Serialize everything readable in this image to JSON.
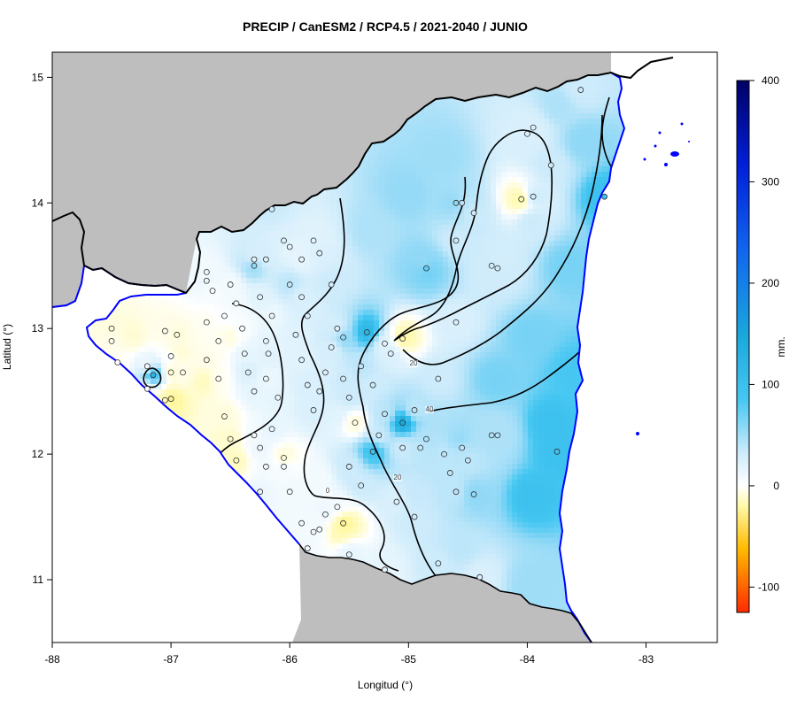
{
  "title": "PRECIP / CanESM2 / RCP4.5 / 2021-2040 / JUNIO",
  "x_axis": {
    "label": "Longitud (°)",
    "range": [
      -88,
      -82.4
    ],
    "ticks": [
      "-88",
      "-87",
      "-86",
      "-85",
      "-84",
      "-83"
    ]
  },
  "y_axis": {
    "label": "Latitud (°)",
    "range": [
      10.5,
      15.2
    ],
    "ticks": [
      "11",
      "12",
      "13",
      "14",
      "15"
    ]
  },
  "colorbar": {
    "label": "mm.",
    "range": [
      -125,
      400
    ],
    "ticks": [
      "-100",
      "0",
      "100",
      "200",
      "300",
      "400"
    ],
    "colors": {
      "very_negative": "#ff2a00",
      "negative": "#ffcc00",
      "low_negative": "#fffbb0",
      "zero": "#ffffff",
      "low_positive": "#bfe6fb",
      "mid_positive": "#1fc0f2",
      "high_positive": "#0026e0",
      "max": "#000070"
    }
  },
  "contours": {
    "levels": [
      "0",
      "20",
      "40"
    ],
    "label_0": "0",
    "label_20a": "20",
    "label_20b": "20",
    "label_40": "40"
  },
  "colors": {
    "land_outside": "#bebebe",
    "sea": "#ffffff",
    "border": "#000000",
    "coast": "#0000ff"
  },
  "stations": [
    {
      "lon": -87.5,
      "lat": 13.0,
      "v": -8
    },
    {
      "lon": -87.5,
      "lat": 12.9,
      "v": -5
    },
    {
      "lon": -87.45,
      "lat": 12.73,
      "v": -2
    },
    {
      "lon": -87.2,
      "lat": 12.7,
      "v": 5
    },
    {
      "lon": -87.15,
      "lat": 12.63,
      "v": 70
    },
    {
      "lon": -87.2,
      "lat": 12.52,
      "v": 2
    },
    {
      "lon": -87.05,
      "lat": 12.98,
      "v": -5
    },
    {
      "lon": -86.95,
      "lat": 12.95,
      "v": -8
    },
    {
      "lon": -87.0,
      "lat": 12.78,
      "v": 2
    },
    {
      "lon": -87.0,
      "lat": 12.65,
      "v": -10
    },
    {
      "lon": -87.05,
      "lat": 12.43,
      "v": -15
    },
    {
      "lon": -87.0,
      "lat": 12.44,
      "v": -25
    },
    {
      "lon": -86.9,
      "lat": 12.65,
      "v": -5
    },
    {
      "lon": -86.7,
      "lat": 12.75,
      "v": -5
    },
    {
      "lon": -86.6,
      "lat": 12.6,
      "v": -3
    },
    {
      "lon": -86.55,
      "lat": 12.3,
      "v": -8
    },
    {
      "lon": -86.5,
      "lat": 12.12,
      "v": -12
    },
    {
      "lon": -86.45,
      "lat": 11.95,
      "v": -15
    },
    {
      "lon": -86.7,
      "lat": 13.05,
      "v": -3
    },
    {
      "lon": -86.6,
      "lat": 12.9,
      "v": -3
    },
    {
      "lon": -86.55,
      "lat": 13.1,
      "v": 2
    },
    {
      "lon": -86.65,
      "lat": 13.3,
      "v": 3
    },
    {
      "lon": -86.7,
      "lat": 13.45,
      "v": 5
    },
    {
      "lon": -86.7,
      "lat": 13.38,
      "v": 8
    },
    {
      "lon": -86.5,
      "lat": 13.35,
      "v": 5
    },
    {
      "lon": -86.45,
      "lat": 13.2,
      "v": 5
    },
    {
      "lon": -86.4,
      "lat": 13.0,
      "v": 3
    },
    {
      "lon": -86.38,
      "lat": 12.8,
      "v": 10
    },
    {
      "lon": -86.35,
      "lat": 12.65,
      "v": 15
    },
    {
      "lon": -86.3,
      "lat": 12.5,
      "v": 10
    },
    {
      "lon": -86.3,
      "lat": 12.15,
      "v": 5
    },
    {
      "lon": -86.25,
      "lat": 12.05,
      "v": 8
    },
    {
      "lon": -86.2,
      "lat": 11.9,
      "v": 5
    },
    {
      "lon": -86.25,
      "lat": 11.7,
      "v": 8
    },
    {
      "lon": -86.05,
      "lat": 11.9,
      "v": 5
    },
    {
      "lon": -86.05,
      "lat": 11.97,
      "v": -10
    },
    {
      "lon": -86.0,
      "lat": 11.7,
      "v": 5
    },
    {
      "lon": -86.15,
      "lat": 12.2,
      "v": 10
    },
    {
      "lon": -86.1,
      "lat": 12.45,
      "v": 10
    },
    {
      "lon": -86.2,
      "lat": 12.6,
      "v": 8
    },
    {
      "lon": -86.18,
      "lat": 12.8,
      "v": 12
    },
    {
      "lon": -86.2,
      "lat": 12.9,
      "v": 10
    },
    {
      "lon": -86.15,
      "lat": 13.1,
      "v": 8
    },
    {
      "lon": -86.25,
      "lat": 13.25,
      "v": 12
    },
    {
      "lon": -86.3,
      "lat": 13.5,
      "v": 40
    },
    {
      "lon": -86.3,
      "lat": 13.55,
      "v": 12
    },
    {
      "lon": -86.2,
      "lat": 13.55,
      "v": 15
    },
    {
      "lon": -86.05,
      "lat": 13.7,
      "v": 15
    },
    {
      "lon": -86.15,
      "lat": 13.95,
      "v": 20
    },
    {
      "lon": -86.0,
      "lat": 13.65,
      "v": 10
    },
    {
      "lon": -86.0,
      "lat": 13.35,
      "v": 25
    },
    {
      "lon": -85.9,
      "lat": 13.25,
      "v": 15
    },
    {
      "lon": -85.85,
      "lat": 13.1,
      "v": 15
    },
    {
      "lon": -85.95,
      "lat": 12.95,
      "v": 12
    },
    {
      "lon": -85.9,
      "lat": 12.75,
      "v": 12
    },
    {
      "lon": -85.85,
      "lat": 12.55,
      "v": 15
    },
    {
      "lon": -85.8,
      "lat": 12.35,
      "v": 15
    },
    {
      "lon": -85.75,
      "lat": 12.5,
      "v": 15
    },
    {
      "lon": -85.7,
      "lat": 12.65,
      "v": 15
    },
    {
      "lon": -85.65,
      "lat": 12.85,
      "v": 15
    },
    {
      "lon": -85.6,
      "lat": 13.0,
      "v": 15
    },
    {
      "lon": -85.65,
      "lat": 13.35,
      "v": 20
    },
    {
      "lon": -85.75,
      "lat": 13.6,
      "v": 15
    },
    {
      "lon": -85.8,
      "lat": 13.7,
      "v": 12
    },
    {
      "lon": -85.9,
      "lat": 13.55,
      "v": 10
    },
    {
      "lon": -85.55,
      "lat": 12.6,
      "v": 20
    },
    {
      "lon": -85.5,
      "lat": 12.45,
      "v": 20
    },
    {
      "lon": -85.4,
      "lat": 12.7,
      "v": 25
    },
    {
      "lon": -85.45,
      "lat": 12.25,
      "v": -8
    },
    {
      "lon": -85.3,
      "lat": 12.55,
      "v": 20
    },
    {
      "lon": -85.5,
      "lat": 11.9,
      "v": 20
    },
    {
      "lon": -85.4,
      "lat": 11.75,
      "v": 20
    },
    {
      "lon": -85.25,
      "lat": 12.15,
      "v": 20
    },
    {
      "lon": -85.3,
      "lat": 12.02,
      "v": 60
    },
    {
      "lon": -85.2,
      "lat": 12.32,
      "v": 25
    },
    {
      "lon": -85.05,
      "lat": 12.25,
      "v": 80
    },
    {
      "lon": -85.05,
      "lat": 12.05,
      "v": 20
    },
    {
      "lon": -84.95,
      "lat": 12.35,
      "v": 25
    },
    {
      "lon": -84.9,
      "lat": 12.05,
      "v": 25
    },
    {
      "lon": -84.85,
      "lat": 12.12,
      "v": 30
    },
    {
      "lon": -84.7,
      "lat": 12.0,
      "v": 25
    },
    {
      "lon": -84.65,
      "lat": 11.85,
      "v": 25
    },
    {
      "lon": -84.6,
      "lat": 11.7,
      "v": 25
    },
    {
      "lon": -84.45,
      "lat": 11.68,
      "v": 40
    },
    {
      "lon": -84.3,
      "lat": 12.15,
      "v": 30
    },
    {
      "lon": -84.25,
      "lat": 12.15,
      "v": 30
    },
    {
      "lon": -84.5,
      "lat": 11.95,
      "v": 25
    },
    {
      "lon": -84.55,
      "lat": 12.05,
      "v": 25
    },
    {
      "lon": -85.2,
      "lat": 12.88,
      "v": 12
    },
    {
      "lon": -85.15,
      "lat": 12.8,
      "v": 15
    },
    {
      "lon": -85.05,
      "lat": 12.92,
      "v": -20
    },
    {
      "lon": -85.35,
      "lat": 12.97,
      "v": 70
    },
    {
      "lon": -85.55,
      "lat": 12.93,
      "v": 40
    },
    {
      "lon": -84.85,
      "lat": 13.48,
      "v": 50
    },
    {
      "lon": -84.6,
      "lat": 13.7,
      "v": 20
    },
    {
      "lon": -84.6,
      "lat": 14.0,
      "v": 40
    },
    {
      "lon": -84.55,
      "lat": 14.0,
      "v": 25
    },
    {
      "lon": -84.45,
      "lat": 13.92,
      "v": 20
    },
    {
      "lon": -84.3,
      "lat": 13.5,
      "v": 20
    },
    {
      "lon": -84.25,
      "lat": 13.48,
      "v": 20
    },
    {
      "lon": -84.05,
      "lat": 14.03,
      "v": -20
    },
    {
      "lon": -83.95,
      "lat": 14.05,
      "v": 20
    },
    {
      "lon": -84.0,
      "lat": 14.55,
      "v": 15
    },
    {
      "lon": -83.95,
      "lat": 14.6,
      "v": 15
    },
    {
      "lon": -83.8,
      "lat": 14.3,
      "v": 20
    },
    {
      "lon": -83.35,
      "lat": 14.05,
      "v": 60
    },
    {
      "lon": -83.55,
      "lat": 14.9,
      "v": 20
    },
    {
      "lon": -83.75,
      "lat": 12.02,
      "v": 60
    },
    {
      "lon": -85.1,
      "lat": 11.62,
      "v": 15
    },
    {
      "lon": -84.95,
      "lat": 11.5,
      "v": 20
    },
    {
      "lon": -84.75,
      "lat": 11.13,
      "v": 20
    },
    {
      "lon": -84.4,
      "lat": 11.02,
      "v": 15
    },
    {
      "lon": -85.2,
      "lat": 11.08,
      "v": 10
    },
    {
      "lon": -85.5,
      "lat": 11.2,
      "v": 10
    },
    {
      "lon": -85.55,
      "lat": 11.45,
      "v": -25
    },
    {
      "lon": -85.6,
      "lat": 11.58,
      "v": 5
    },
    {
      "lon": -85.7,
      "lat": 11.52,
      "v": 8
    },
    {
      "lon": -85.75,
      "lat": 11.4,
      "v": 5
    },
    {
      "lon": -85.8,
      "lat": 11.38,
      "v": 5
    },
    {
      "lon": -85.9,
      "lat": 11.45,
      "v": 5
    },
    {
      "lon": -85.85,
      "lat": 11.25,
      "v": 5
    },
    {
      "lon": -84.75,
      "lat": 12.6,
      "v": 20
    },
    {
      "lon": -84.6,
      "lat": 13.05,
      "v": 15
    }
  ]
}
